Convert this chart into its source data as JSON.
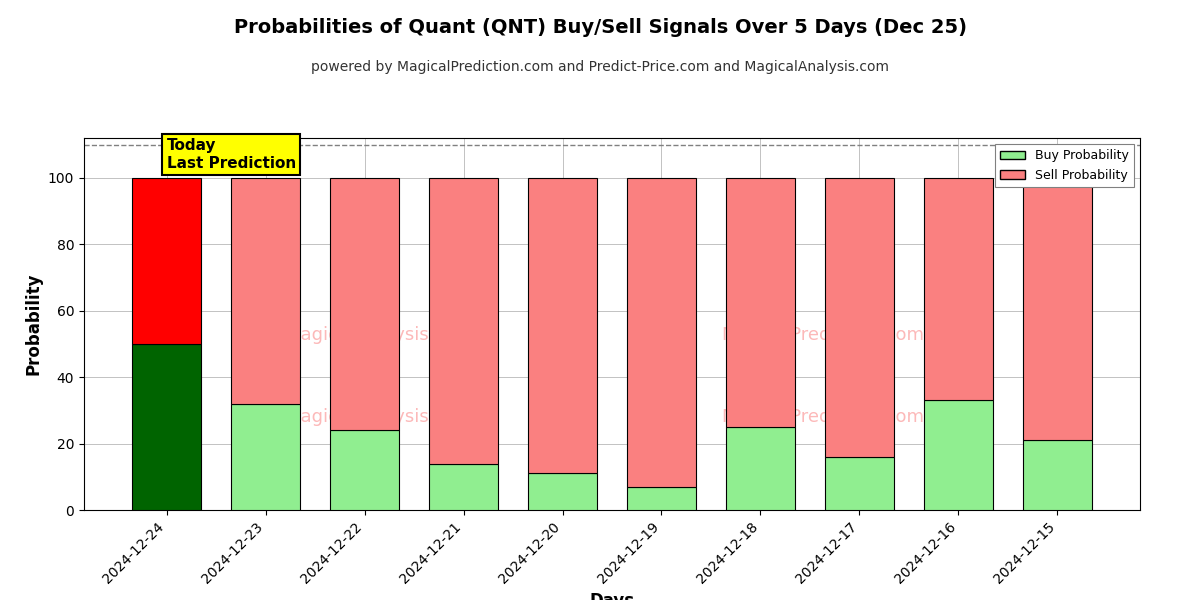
{
  "title": "Probabilities of Quant (QNT) Buy/Sell Signals Over 5 Days (Dec 25)",
  "subtitle": "powered by MagicalPrediction.com and Predict-Price.com and MagicalAnalysis.com",
  "xlabel": "Days",
  "ylabel": "Probability",
  "days": [
    "2024-12-24",
    "2024-12-23",
    "2024-12-22",
    "2024-12-21",
    "2024-12-20",
    "2024-12-19",
    "2024-12-18",
    "2024-12-17",
    "2024-12-16",
    "2024-12-15"
  ],
  "buy_probs": [
    50,
    32,
    24,
    14,
    11,
    7,
    25,
    16,
    33,
    21
  ],
  "sell_probs": [
    50,
    68,
    76,
    86,
    89,
    93,
    75,
    84,
    67,
    79
  ],
  "today_buy_color": "#006400",
  "today_sell_color": "#FF0000",
  "buy_color": "#90EE90",
  "sell_color": "#FA8080",
  "bar_edge_color": "#000000",
  "ylim": [
    0,
    112
  ],
  "yticks": [
    0,
    20,
    40,
    60,
    80,
    100
  ],
  "dashed_line_y": 110,
  "legend_buy_label": "Buy Probability",
  "legend_sell_label": "Sell Probability",
  "today_annotation": "Today\nLast Prediction",
  "today_annotation_bg": "#FFFF00",
  "background_color": "#FFFFFF",
  "grid_color": "#AAAAAA",
  "title_fontsize": 14,
  "subtitle_fontsize": 10,
  "axis_label_fontsize": 12,
  "tick_fontsize": 10
}
